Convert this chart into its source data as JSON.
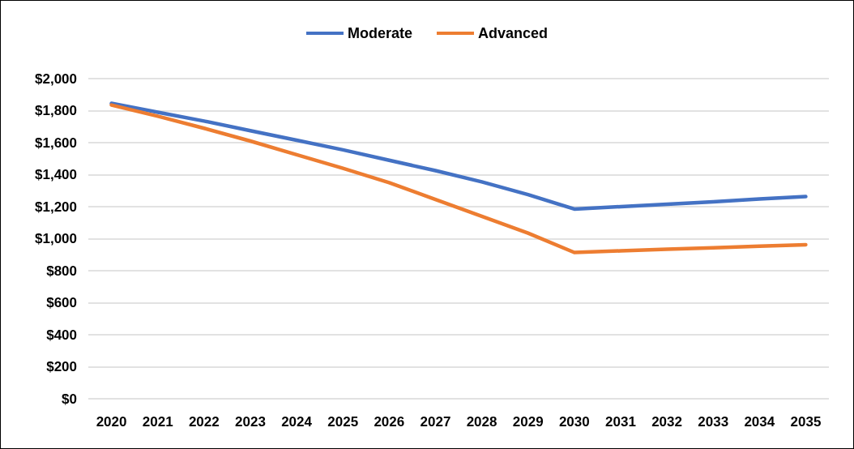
{
  "chart_data": {
    "type": "line",
    "categories": [
      "2020",
      "2021",
      "2022",
      "2023",
      "2024",
      "2025",
      "2026",
      "2027",
      "2028",
      "2029",
      "2030",
      "2031",
      "2032",
      "2033",
      "2034",
      "2035"
    ],
    "series": [
      {
        "name": "Moderate",
        "color": "#4472c4",
        "values": [
          1846,
          1790,
          1735,
          1675,
          1615,
          1555,
          1490,
          1425,
          1355,
          1275,
          1185,
          1200,
          1215,
          1230,
          1248,
          1263
        ]
      },
      {
        "name": "Advanced",
        "color": "#ed7d31",
        "values": [
          1835,
          1765,
          1690,
          1610,
          1525,
          1440,
          1350,
          1245,
          1140,
          1035,
          914,
          924,
          934,
          943,
          953,
          962
        ]
      }
    ],
    "ylim": [
      0,
      2000
    ],
    "yticks": [
      {
        "value": 0,
        "label": "$0"
      },
      {
        "value": 200,
        "label": "$200"
      },
      {
        "value": 400,
        "label": "$400"
      },
      {
        "value": 600,
        "label": "$600"
      },
      {
        "value": 800,
        "label": "$800"
      },
      {
        "value": 1000,
        "label": "$1,000"
      },
      {
        "value": 1200,
        "label": "$1,200"
      },
      {
        "value": 1400,
        "label": "$1,400"
      },
      {
        "value": 1600,
        "label": "$1,600"
      },
      {
        "value": 1800,
        "label": "$1,800"
      },
      {
        "value": 2000,
        "label": "$2,000"
      }
    ],
    "grid": "y",
    "legend": "top",
    "marker": "none",
    "line_style": "solid"
  }
}
